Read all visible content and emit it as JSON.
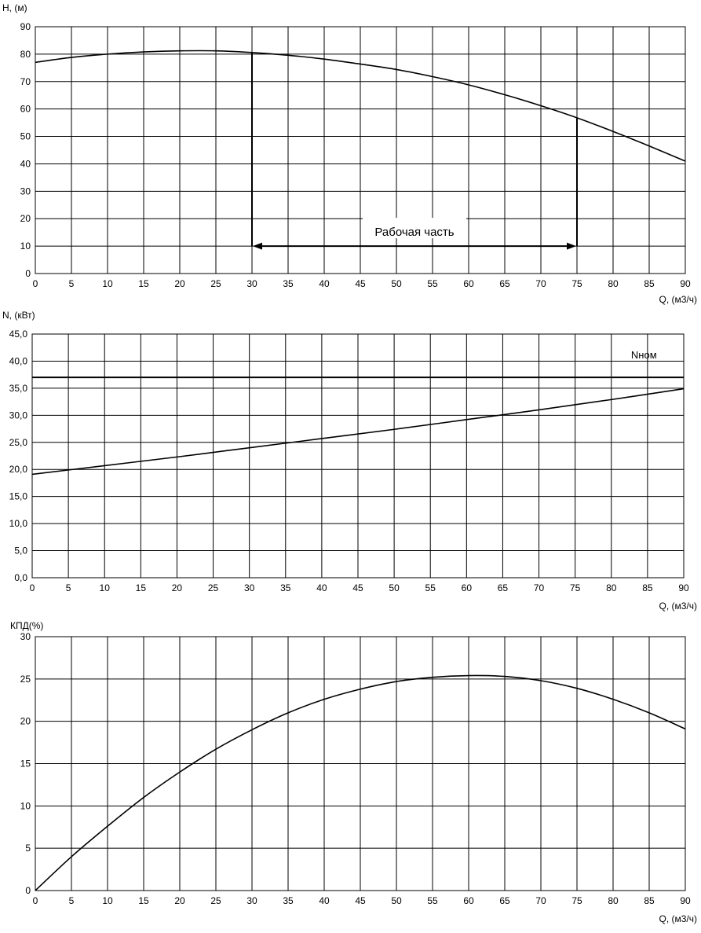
{
  "chart_data": [
    {
      "id": "head",
      "type": "line",
      "ylabel": "H, (м)",
      "xlabel": "Q, (м3/ч)",
      "xlim": [
        0,
        90
      ],
      "ylim": [
        0,
        90
      ],
      "xticks": [
        0,
        5,
        10,
        15,
        20,
        25,
        30,
        35,
        40,
        45,
        50,
        55,
        60,
        65,
        70,
        75,
        80,
        85,
        90
      ],
      "yticks": [
        0,
        10,
        20,
        30,
        40,
        50,
        60,
        70,
        80,
        90
      ],
      "xtick_labels": [
        "0",
        "5",
        "10",
        "15",
        "20",
        "25",
        "30",
        "35",
        "40",
        "45",
        "50",
        "55",
        "60",
        "65",
        "70",
        "75",
        "80",
        "85",
        "90"
      ],
      "ytick_labels": [
        "0",
        "10",
        "20",
        "30",
        "40",
        "50",
        "60",
        "70",
        "80",
        "90"
      ],
      "grid": true,
      "series": [
        {
          "x": [
            0,
            5,
            10,
            15,
            20,
            25,
            30,
            35,
            40,
            45,
            50,
            55,
            60,
            65,
            70,
            75,
            80,
            85,
            90
          ],
          "y": [
            77,
            78.8,
            80,
            80.8,
            81.2,
            81.2,
            80.6,
            79.6,
            78.2,
            76.4,
            74.4,
            71.8,
            68.8,
            65.2,
            61.2,
            56.8,
            51.8,
            46.5,
            41
          ]
        }
      ],
      "annotations": [
        {
          "text": "Рабочая часть",
          "range_x": [
            30,
            75
          ],
          "arrow_y": 10,
          "verticals": [
            {
              "x": 30,
              "y_top": 80.6
            },
            {
              "x": 75,
              "y_top": 56.8
            }
          ]
        }
      ]
    },
    {
      "id": "power",
      "type": "line",
      "ylabel": "N, (кВт)",
      "xlabel": "Q, (м3/ч)",
      "xlim": [
        0,
        90
      ],
      "ylim": [
        0,
        45
      ],
      "xticks": [
        0,
        5,
        10,
        15,
        20,
        25,
        30,
        35,
        40,
        45,
        50,
        55,
        60,
        65,
        70,
        75,
        80,
        85,
        90
      ],
      "yticks": [
        0,
        5,
        10,
        15,
        20,
        25,
        30,
        35,
        40,
        45
      ],
      "xtick_labels": [
        "0",
        "5",
        "10",
        "15",
        "20",
        "25",
        "30",
        "35",
        "40",
        "45",
        "50",
        "55",
        "60",
        "65",
        "70",
        "75",
        "80",
        "85",
        "90"
      ],
      "ytick_labels": [
        "0,0",
        "5,0",
        "10,0",
        "15,0",
        "20,0",
        "25,0",
        "30,0",
        "35,0",
        "40,0",
        "45,0"
      ],
      "grid": true,
      "series": [
        {
          "x": [
            0,
            10,
            20,
            30,
            40,
            50,
            60,
            70,
            80,
            90
          ],
          "y": [
            19.1,
            20.7,
            22.3,
            24.0,
            25.7,
            27.4,
            29.2,
            31.0,
            32.9,
            34.9
          ]
        }
      ],
      "reference_line": {
        "label": "Nном",
        "y": 37,
        "label_x": 84.5,
        "label_y": 41.2
      }
    },
    {
      "id": "efficiency",
      "type": "line",
      "ylabel": "КПД(%)",
      "xlabel": "Q, (м3/ч)",
      "xlim": [
        0,
        90
      ],
      "ylim": [
        0,
        30
      ],
      "xticks": [
        0,
        5,
        10,
        15,
        20,
        25,
        30,
        35,
        40,
        45,
        50,
        55,
        60,
        65,
        70,
        75,
        80,
        85,
        90
      ],
      "yticks": [
        0,
        5,
        10,
        15,
        20,
        25,
        30
      ],
      "xtick_labels": [
        "0",
        "5",
        "10",
        "15",
        "20",
        "25",
        "30",
        "35",
        "40",
        "45",
        "50",
        "55",
        "60",
        "65",
        "70",
        "75",
        "80",
        "85",
        "90"
      ],
      "ytick_labels": [
        "0",
        "5",
        "10",
        "15",
        "20",
        "25",
        "30"
      ],
      "grid": true,
      "series": [
        {
          "x": [
            0,
            5,
            10,
            15,
            20,
            25,
            30,
            35,
            40,
            45,
            50,
            55,
            60,
            65,
            70,
            75,
            80,
            85,
            90
          ],
          "y": [
            0,
            4.0,
            7.6,
            11.0,
            14.0,
            16.7,
            19.0,
            21.0,
            22.6,
            23.8,
            24.7,
            25.2,
            25.4,
            25.3,
            24.8,
            23.9,
            22.6,
            21.0,
            19.1
          ]
        }
      ]
    }
  ]
}
